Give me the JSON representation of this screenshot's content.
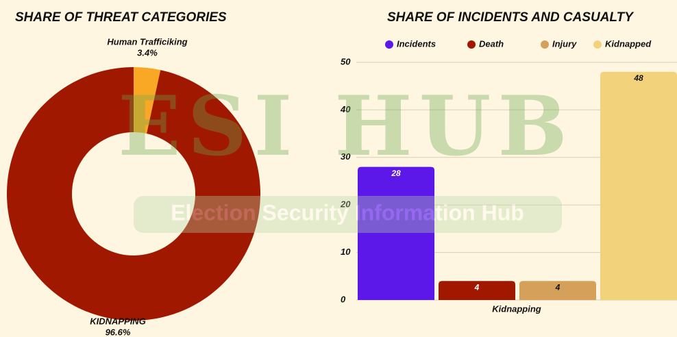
{
  "watermark": {
    "title": "ESI HUB",
    "subtitle": "Election Security Information Hub"
  },
  "chart_data": [
    {
      "type": "pie",
      "title": "SHARE OF THREAT CATEGORIES",
      "categories": [
        "Human Trafficiking",
        "KIDNAPPING"
      ],
      "values": [
        3.4,
        96.6
      ],
      "value_labels": [
        "3.4%",
        "96.6%"
      ],
      "colors": [
        "#f9a825",
        "#a01800"
      ],
      "donut": true
    },
    {
      "type": "bar",
      "title": "SHARE OF INCIDENTS AND CASUALTY",
      "categories": [
        "Kidnapping"
      ],
      "series": [
        {
          "name": "Incidents",
          "color": "#5b18e8",
          "values": [
            28
          ]
        },
        {
          "name": "Death",
          "color": "#a01800",
          "values": [
            4
          ]
        },
        {
          "name": "Injury",
          "color": "#d4a05a",
          "values": [
            4
          ]
        },
        {
          "name": "Kidnapped",
          "color": "#f2d27a",
          "values": [
            48
          ]
        }
      ],
      "ylim": [
        0,
        50
      ],
      "yticks": [
        0,
        10,
        20,
        30,
        40,
        50
      ],
      "grid": true,
      "legend": "top"
    }
  ]
}
